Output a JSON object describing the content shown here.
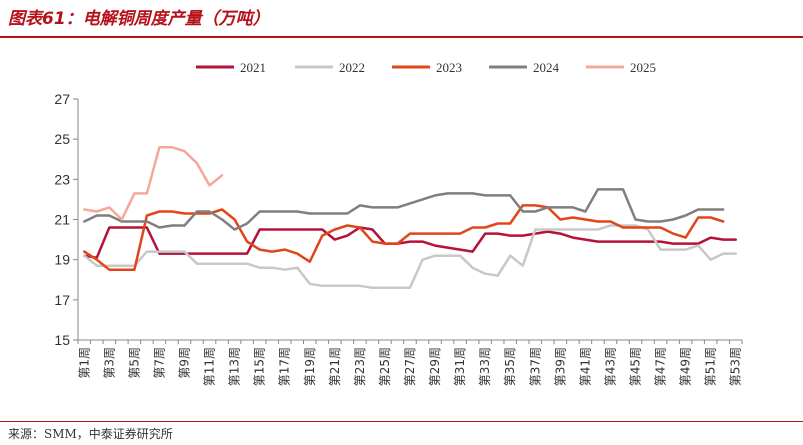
{
  "header": {
    "title": "图表61：电解铜周度产量（万吨）"
  },
  "footer": {
    "source": "来源：SMM，中泰证券研究所"
  },
  "chart_data": {
    "type": "line",
    "title": "图表61：电解铜周度产量（万吨）",
    "ylabel": "",
    "xlabel": "",
    "ylim": [
      15,
      27
    ],
    "yticks": [
      15,
      17,
      19,
      21,
      23,
      25,
      27
    ],
    "grid": false,
    "legend_position": "top",
    "categories": [
      "第1周",
      "第2周",
      "第3周",
      "第4周",
      "第5周",
      "第6周",
      "第7周",
      "第8周",
      "第9周",
      "第10周",
      "第11周",
      "第12周",
      "第13周",
      "第14周",
      "第15周",
      "第16周",
      "第17周",
      "第18周",
      "第19周",
      "第20周",
      "第21周",
      "第22周",
      "第23周",
      "第24周",
      "第25周",
      "第26周",
      "第27周",
      "第28周",
      "第29周",
      "第30周",
      "第31周",
      "第32周",
      "第33周",
      "第34周",
      "第35周",
      "第36周",
      "第37周",
      "第38周",
      "第39周",
      "第40周",
      "第41周",
      "第42周",
      "第43周",
      "第44周",
      "第45周",
      "第46周",
      "第47周",
      "第48周",
      "第49周",
      "第50周",
      "第51周",
      "第52周",
      "第53周"
    ],
    "xtick_labels": [
      "第1周",
      "第3周",
      "第5周",
      "第7周",
      "第9周",
      "第11周",
      "第13周",
      "第15周",
      "第17周",
      "第19周",
      "第21周",
      "第23周",
      "第25周",
      "第27周",
      "第29周",
      "第31周",
      "第33周",
      "第35周",
      "第37周",
      "第39周",
      "第41周",
      "第43周",
      "第45周",
      "第47周",
      "第49周",
      "第51周",
      "第53周"
    ],
    "series": [
      {
        "name": "2021",
        "color": "#b5123b",
        "values": [
          19.2,
          19.1,
          20.6,
          20.6,
          20.6,
          20.6,
          19.3,
          19.3,
          19.3,
          19.3,
          19.3,
          19.3,
          19.3,
          19.3,
          20.5,
          20.5,
          20.5,
          20.5,
          20.5,
          20.5,
          20.0,
          20.2,
          20.6,
          20.5,
          19.8,
          19.8,
          19.9,
          19.9,
          19.7,
          19.6,
          19.5,
          19.4,
          20.3,
          20.3,
          20.2,
          20.2,
          20.3,
          20.4,
          20.3,
          20.1,
          20.0,
          19.9,
          19.9,
          19.9,
          19.9,
          19.9,
          19.9,
          19.8,
          19.8,
          19.8,
          20.1,
          20.0,
          20.0
        ]
      },
      {
        "name": "2022",
        "color": "#c8c8c8",
        "values": [
          19.2,
          18.7,
          18.7,
          18.7,
          18.7,
          19.4,
          19.4,
          19.4,
          19.4,
          18.8,
          18.8,
          18.8,
          18.8,
          18.8,
          18.6,
          18.6,
          18.5,
          18.6,
          17.8,
          17.7,
          17.7,
          17.7,
          17.7,
          17.6,
          17.6,
          17.6,
          17.6,
          19.0,
          19.2,
          19.2,
          19.2,
          18.6,
          18.3,
          18.2,
          19.2,
          18.7,
          20.5,
          20.5,
          20.5,
          20.5,
          20.5,
          20.5,
          20.7,
          20.7,
          20.7,
          20.5,
          19.5,
          19.5,
          19.5,
          19.7,
          19.0,
          19.3,
          19.3
        ]
      },
      {
        "name": "2023",
        "color": "#e0461a",
        "values": [
          19.4,
          19.0,
          18.5,
          18.5,
          18.5,
          21.2,
          21.4,
          21.4,
          21.3,
          21.3,
          21.3,
          21.5,
          21.0,
          19.9,
          19.5,
          19.4,
          19.5,
          19.3,
          18.9,
          20.2,
          20.5,
          20.7,
          20.6,
          19.9,
          19.8,
          19.8,
          20.3,
          20.3,
          20.3,
          20.3,
          20.3,
          20.6,
          20.6,
          20.8,
          20.8,
          21.7,
          21.7,
          21.6,
          21.0,
          21.1,
          21.0,
          20.9,
          20.9,
          20.6,
          20.6,
          20.6,
          20.6,
          20.3,
          20.1,
          21.1,
          21.1,
          20.9,
          null
        ]
      },
      {
        "name": "2024",
        "color": "#7f7f7f",
        "values": [
          20.9,
          21.2,
          21.2,
          20.9,
          20.9,
          20.9,
          20.6,
          20.7,
          20.7,
          21.4,
          21.4,
          21.0,
          20.5,
          20.8,
          21.4,
          21.4,
          21.4,
          21.4,
          21.3,
          21.3,
          21.3,
          21.3,
          21.7,
          21.6,
          21.6,
          21.6,
          21.8,
          22.0,
          22.2,
          22.3,
          22.3,
          22.3,
          22.2,
          22.2,
          22.2,
          21.4,
          21.4,
          21.6,
          21.6,
          21.6,
          21.4,
          22.5,
          22.5,
          22.5,
          21.0,
          20.9,
          20.9,
          21.0,
          21.2,
          21.5,
          21.5,
          21.5,
          null
        ]
      },
      {
        "name": "2025",
        "color": "#f4a89a",
        "values": [
          21.5,
          21.4,
          21.6,
          21.0,
          22.3,
          22.3,
          24.6,
          24.6,
          24.4,
          23.8,
          22.7,
          23.2,
          null,
          null,
          null,
          null,
          null,
          null,
          null,
          null,
          null,
          null,
          null,
          null,
          null,
          null,
          null,
          null,
          null,
          null,
          null,
          null,
          null,
          null,
          null,
          null,
          null,
          null,
          null,
          null,
          null,
          null,
          null,
          null,
          null,
          null,
          null,
          null,
          null,
          null,
          null,
          null,
          null
        ]
      }
    ]
  }
}
